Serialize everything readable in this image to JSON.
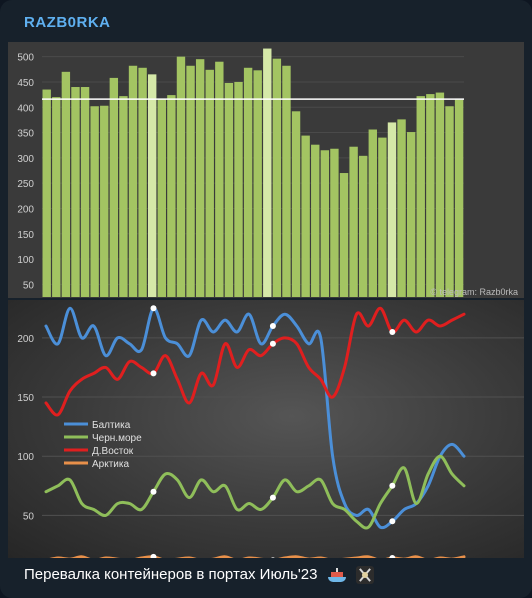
{
  "channel": {
    "name": "RAZB0RKA"
  },
  "caption": {
    "text": "Перевалка контейнеров в портах Июль'23"
  },
  "icons": {
    "ship": "ship-icon",
    "pirate": "pirate-flag-icon"
  },
  "colors": {
    "bar": "#a3c462",
    "bar_highlight": "#d5e8a8",
    "avg_line": "#ffffff",
    "baltic": "#4b8fd8",
    "black_sea": "#8fbe5a",
    "far_east": "#e01f1f",
    "arctic": "#e8904a"
  },
  "chart_data": [
    {
      "type": "bar",
      "yticks": [
        50,
        100,
        150,
        200,
        250,
        300,
        350,
        400,
        450,
        500
      ],
      "ylim": [
        25,
        525
      ],
      "average": 416,
      "watermark": "© telegram: Razb0rka",
      "values": [
        435,
        420,
        470,
        440,
        440,
        402,
        403,
        458,
        422,
        482,
        478,
        465,
        416,
        424,
        500,
        482,
        495,
        474,
        490,
        448,
        450,
        478,
        473,
        516,
        496,
        482,
        392,
        344,
        326,
        315,
        318,
        270,
        322,
        304,
        356,
        340,
        370,
        376,
        351,
        422,
        426,
        429,
        402,
        415
      ],
      "highlight": [
        11,
        23,
        36
      ]
    },
    {
      "type": "line",
      "yticks": [
        50,
        100,
        150,
        200
      ],
      "ylim": [
        14,
        232
      ],
      "legend": "center-left",
      "series": [
        {
          "name": "Балтика",
          "color_key": "baltic",
          "values": [
            210,
            195,
            225,
            200,
            210,
            185,
            200,
            195,
            190,
            225,
            200,
            195,
            185,
            215,
            205,
            215,
            205,
            220,
            195,
            210,
            220,
            210,
            195,
            200,
            100,
            60,
            50,
            55,
            40,
            45,
            55,
            60,
            75,
            100,
            110,
            100
          ]
        },
        {
          "name": "Черн.море",
          "color_key": "black_sea",
          "values": [
            70,
            75,
            80,
            60,
            55,
            50,
            60,
            60,
            55,
            70,
            85,
            80,
            65,
            80,
            70,
            75,
            55,
            60,
            55,
            65,
            80,
            70,
            75,
            80,
            60,
            55,
            45,
            40,
            60,
            75,
            90,
            60,
            85,
            100,
            85,
            75
          ]
        },
        {
          "name": "Д.Восток",
          "color_key": "far_east",
          "values": [
            145,
            135,
            155,
            165,
            170,
            175,
            165,
            180,
            175,
            170,
            185,
            165,
            145,
            170,
            160,
            195,
            175,
            190,
            185,
            195,
            200,
            195,
            175,
            165,
            150,
            175,
            220,
            210,
            225,
            205,
            215,
            205,
            215,
            210,
            215,
            220
          ]
        },
        {
          "name": "Арктика",
          "color_key": "arctic",
          "values": [
            12,
            14,
            13,
            15,
            12,
            14,
            13,
            12,
            14,
            15,
            12,
            13,
            14,
            12,
            13,
            15,
            12,
            14,
            13,
            12,
            14,
            15,
            13,
            14,
            12,
            13,
            14,
            15,
            12,
            14,
            13,
            15,
            12,
            14,
            13,
            15
          ]
        }
      ]
    }
  ]
}
